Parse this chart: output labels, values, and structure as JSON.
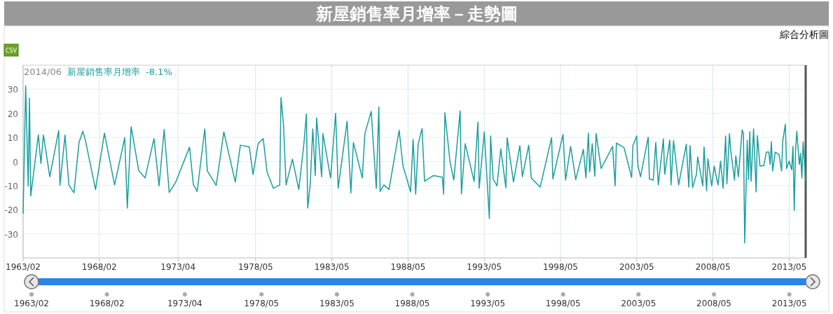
{
  "chart_data": {
    "type": "line",
    "title": "新屋銷售率月增率－走勢圖",
    "annotations": [
      "2014/06",
      "-8.1%",
      "綜合分析圖",
      "CSV"
    ],
    "xlim": [
      "1963-02",
      "2014-06"
    ],
    "xticks": [
      {
        "value": "1963-02",
        "label": "1963/02"
      },
      {
        "value": "1968-02",
        "label": "1968/02"
      },
      {
        "value": "1973-04",
        "label": "1973/04"
      },
      {
        "value": "1978-05",
        "label": "1978/05"
      },
      {
        "value": "1983-05",
        "label": "1983/05"
      },
      {
        "value": "1988-05",
        "label": "1988/05"
      },
      {
        "value": "1993-05",
        "label": "1993/05"
      },
      {
        "value": "1998-05",
        "label": "1998/05"
      },
      {
        "value": "2003-05",
        "label": "2003/05"
      },
      {
        "value": "2008-05",
        "label": "2008/05"
      },
      {
        "value": "2013-05",
        "label": "2013/05"
      }
    ],
    "x2lim": [
      "1963-02",
      "2014-06"
    ],
    "x2ticks": [
      {
        "value": "1963-02",
        "label": "1963/02"
      },
      {
        "value": "1968-02",
        "label": "1968/02"
      },
      {
        "value": "1973-04",
        "label": "1973/04"
      },
      {
        "value": "1978-05",
        "label": "1978/05"
      },
      {
        "value": "1983-05",
        "label": "1983/05"
      },
      {
        "value": "1988-05",
        "label": "1988/05"
      },
      {
        "value": "1993-05",
        "label": "1993/05"
      },
      {
        "value": "1998-05",
        "label": "1998/05"
      },
      {
        "value": "2003-05",
        "label": "2003/05"
      },
      {
        "value": "2008-05",
        "label": "2008/05"
      },
      {
        "value": "2013-05",
        "label": "2013/05"
      }
    ],
    "ylim": [
      -40,
      40
    ],
    "yticks": [
      -30,
      -20,
      -10,
      0,
      10,
      20,
      30
    ],
    "grid": true,
    "legend": "top left",
    "line_style": "solid",
    "series": [
      {
        "name": "新屋銷售率月增率",
        "color": "#1a9e9e",
        "x": [
          "1963-02",
          "1963-04",
          "1963-06",
          "1963-07",
          "1963-08",
          "1964-02",
          "1964-04",
          "1964-06",
          "1964-11",
          "1965-06",
          "1965-07",
          "1965-11",
          "1966-02",
          "1966-06",
          "1966-10",
          "1967-01",
          "1967-03",
          "1967-11",
          "1968-06",
          "1969-02",
          "1969-10",
          "1969-12",
          "1970-03",
          "1970-09",
          "1971-02",
          "1971-09",
          "1972-01",
          "1972-05",
          "1972-09",
          "1973-02",
          "1974-01",
          "1974-04",
          "1974-07",
          "1975-01",
          "1975-03",
          "1975-10",
          "1976-04",
          "1977-01",
          "1977-05",
          "1977-12",
          "1978-03",
          "1978-07",
          "1978-11",
          "1979-02",
          "1979-07",
          "1979-12",
          "1980-01",
          "1980-03",
          "1980-05",
          "1980-10",
          "1981-03",
          "1981-07",
          "1981-09",
          "1981-10",
          "1981-12",
          "1982-02",
          "1982-04",
          "1982-05",
          "1982-09",
          "1982-10",
          "1983-04",
          "1983-08",
          "1983-10",
          "1984-05",
          "1984-08",
          "1984-10",
          "1985-05",
          "1985-07",
          "1985-12",
          "1986-04",
          "1986-06",
          "1986-07",
          "1986-10",
          "1987-02",
          "1987-10",
          "1988-01",
          "1988-03",
          "1988-07",
          "1988-09",
          "1988-11",
          "1989-01",
          "1989-04",
          "1989-06",
          "1990-01",
          "1990-08",
          "1990-09",
          "1990-10",
          "1991-02",
          "1991-05",
          "1991-10",
          "1991-11",
          "1992-02",
          "1992-09",
          "1992-12",
          "1993-01",
          "1993-05",
          "1993-09",
          "1993-10",
          "1993-12",
          "1994-03",
          "1994-06",
          "1994-10",
          "1994-11",
          "1995-04",
          "1995-09",
          "1995-11",
          "1996-04",
          "1996-06",
          "1997-01",
          "1997-10",
          "1997-11",
          "1998-07",
          "1998-09",
          "1999-01",
          "1999-05",
          "1999-11",
          "2000-01",
          "2000-03",
          "2000-04",
          "2000-06",
          "2000-08",
          "2000-09",
          "2001-01",
          "2001-10",
          "2001-12",
          "2002-01",
          "2002-07",
          "2003-01",
          "2003-02",
          "2003-05",
          "2003-06",
          "2003-08",
          "2004-02",
          "2004-03",
          "2004-06",
          "2004-08",
          "2004-10",
          "2005-02",
          "2005-03",
          "2005-07",
          "2005-08",
          "2005-10",
          "2006-02",
          "2006-08",
          "2006-10",
          "2006-11",
          "2007-01",
          "2007-04",
          "2007-05",
          "2007-09",
          "2007-10",
          "2007-12",
          "2008-01",
          "2008-04",
          "2008-06",
          "2008-09",
          "2008-11",
          "2009-01",
          "2009-03",
          "2009-04",
          "2009-06",
          "2009-07",
          "2009-10",
          "2009-11",
          "2010-01",
          "2010-04",
          "2010-05",
          "2010-06",
          "2010-08",
          "2010-09",
          "2010-10",
          "2010-11",
          "2011-01",
          "2011-03",
          "2011-04",
          "2011-06",
          "2011-09",
          "2011-11",
          "2012-01",
          "2012-02",
          "2012-03",
          "2012-04",
          "2012-06",
          "2012-09",
          "2012-11",
          "2012-12",
          "2013-02",
          "2013-03",
          "2013-05",
          "2013-07",
          "2013-08",
          "2013-09",
          "2013-10",
          "2013-11",
          "2014-01",
          "2014-02",
          "2014-03",
          "2014-04",
          "2014-06"
        ],
        "values": [
          -21.7,
          31.4,
          -10.1,
          26.3,
          -14.3,
          11.1,
          -0.8,
          11,
          -6.3,
          12.9,
          -9.9,
          11,
          -9.7,
          -13,
          7.9,
          12.6,
          8.9,
          -11.6,
          11.8,
          -9.7,
          9.9,
          -19.3,
          14.5,
          -3.7,
          -6.8,
          9.5,
          -10.1,
          13.3,
          -12.8,
          -8.7,
          6,
          -9.5,
          -12.4,
          13.5,
          -3.9,
          -9.9,
          12.3,
          -8.5,
          6.8,
          6.1,
          -5.4,
          7.5,
          9.5,
          -4.3,
          -11.1,
          -9.7,
          26.6,
          15,
          -9.7,
          1,
          -11.6,
          7.2,
          19.8,
          -19.3,
          -9.5,
          13.5,
          -5.8,
          18.2,
          -6.3,
          11.6,
          -6.8,
          20,
          -11.1,
          16.7,
          -13,
          7.9,
          -6.8,
          11.6,
          20.8,
          -11.1,
          22.7,
          -12.4,
          -9.7,
          -11.6,
          13,
          -1.9,
          -5.3,
          -12.6,
          9.2,
          -13.5,
          7.4,
          13.7,
          -8.2,
          -5.8,
          -6.5,
          -13.5,
          20.3,
          0,
          -7.7,
          21,
          -13.5,
          7.4,
          -8.2,
          16.4,
          -11.1,
          12.3,
          -23.7,
          10.6,
          -7.2,
          -10.1,
          5.3,
          -10.9,
          9.9,
          -8.5,
          6.6,
          -6.3,
          6.8,
          -6.8,
          -10.6,
          9.9,
          -7.2,
          11.3,
          -7.7,
          6.3,
          -7.5,
          5.1,
          -6.8,
          11.8,
          -4.3,
          7.4,
          -6.1,
          11.6,
          -2.9,
          6.3,
          -10.1,
          7.7,
          5.8,
          -6.6,
          6.6,
          10.6,
          -1.9,
          -6.3,
          10.1,
          -7.2,
          -7.7,
          7.9,
          -9.7,
          9.4,
          -5.3,
          8.9,
          -9.7,
          8.7,
          -9.7,
          7.2,
          -10.6,
          6.6,
          -10.8,
          -5.3,
          1.9,
          -10.1,
          6.1,
          -12.1,
          1.2,
          -10.1,
          -1.9,
          -9.7,
          0.2,
          -11.1,
          10.6,
          -9.2,
          11.6,
          4.6,
          -7.7,
          2.4,
          -6.3,
          13.2,
          11.6,
          -33.8,
          8.9,
          -7.4,
          12.4,
          -8.2,
          13.5,
          -12.6,
          10.8,
          -1.9,
          -1.7,
          3.9,
          3.9,
          -1.2,
          8.2,
          -3.9,
          3.9,
          2.9,
          -3.9,
          8.7,
          15.5,
          -2.9,
          0.2,
          -3.4,
          6.3,
          -20.3,
          4.3,
          12.6,
          -1.2,
          3.4,
          -6.8,
          8.2,
          -8.1
        ]
      }
    ]
  }
}
